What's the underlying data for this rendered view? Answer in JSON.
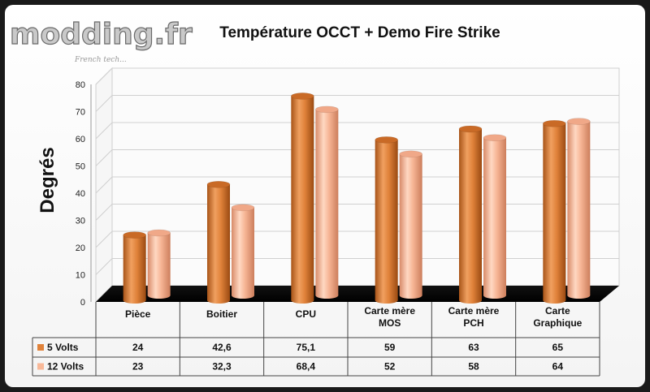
{
  "logo": {
    "text": "modding.fr",
    "tagline": "French tech..."
  },
  "chart_data": {
    "type": "bar",
    "title": "Température OCCT + Demo Fire Strike",
    "ylabel": "Degrés",
    "xlabel": "",
    "ylim": [
      0,
      80
    ],
    "yticks": [
      0,
      10,
      20,
      30,
      40,
      50,
      60,
      70,
      80
    ],
    "categories": [
      [
        "Pièce"
      ],
      [
        "Boitier"
      ],
      [
        "CPU"
      ],
      [
        "Carte mère",
        "MOS"
      ],
      [
        "Carte mère",
        "PCH"
      ],
      [
        "Carte",
        "Graphique"
      ]
    ],
    "series": [
      {
        "name": "5 Volts",
        "values": [
          24,
          42.6,
          75.1,
          59,
          63,
          65
        ],
        "labels": [
          "24",
          "42,6",
          "75,1",
          "59",
          "63",
          "65"
        ],
        "color": "#e0823a"
      },
      {
        "name": "12 Volts",
        "values": [
          23,
          32.3,
          68.4,
          52,
          58,
          64
        ],
        "labels": [
          "23",
          "32,3",
          "68,4",
          "52",
          "58",
          "64"
        ],
        "color": "#f8b898"
      }
    ],
    "grid": true,
    "legend": "table"
  }
}
